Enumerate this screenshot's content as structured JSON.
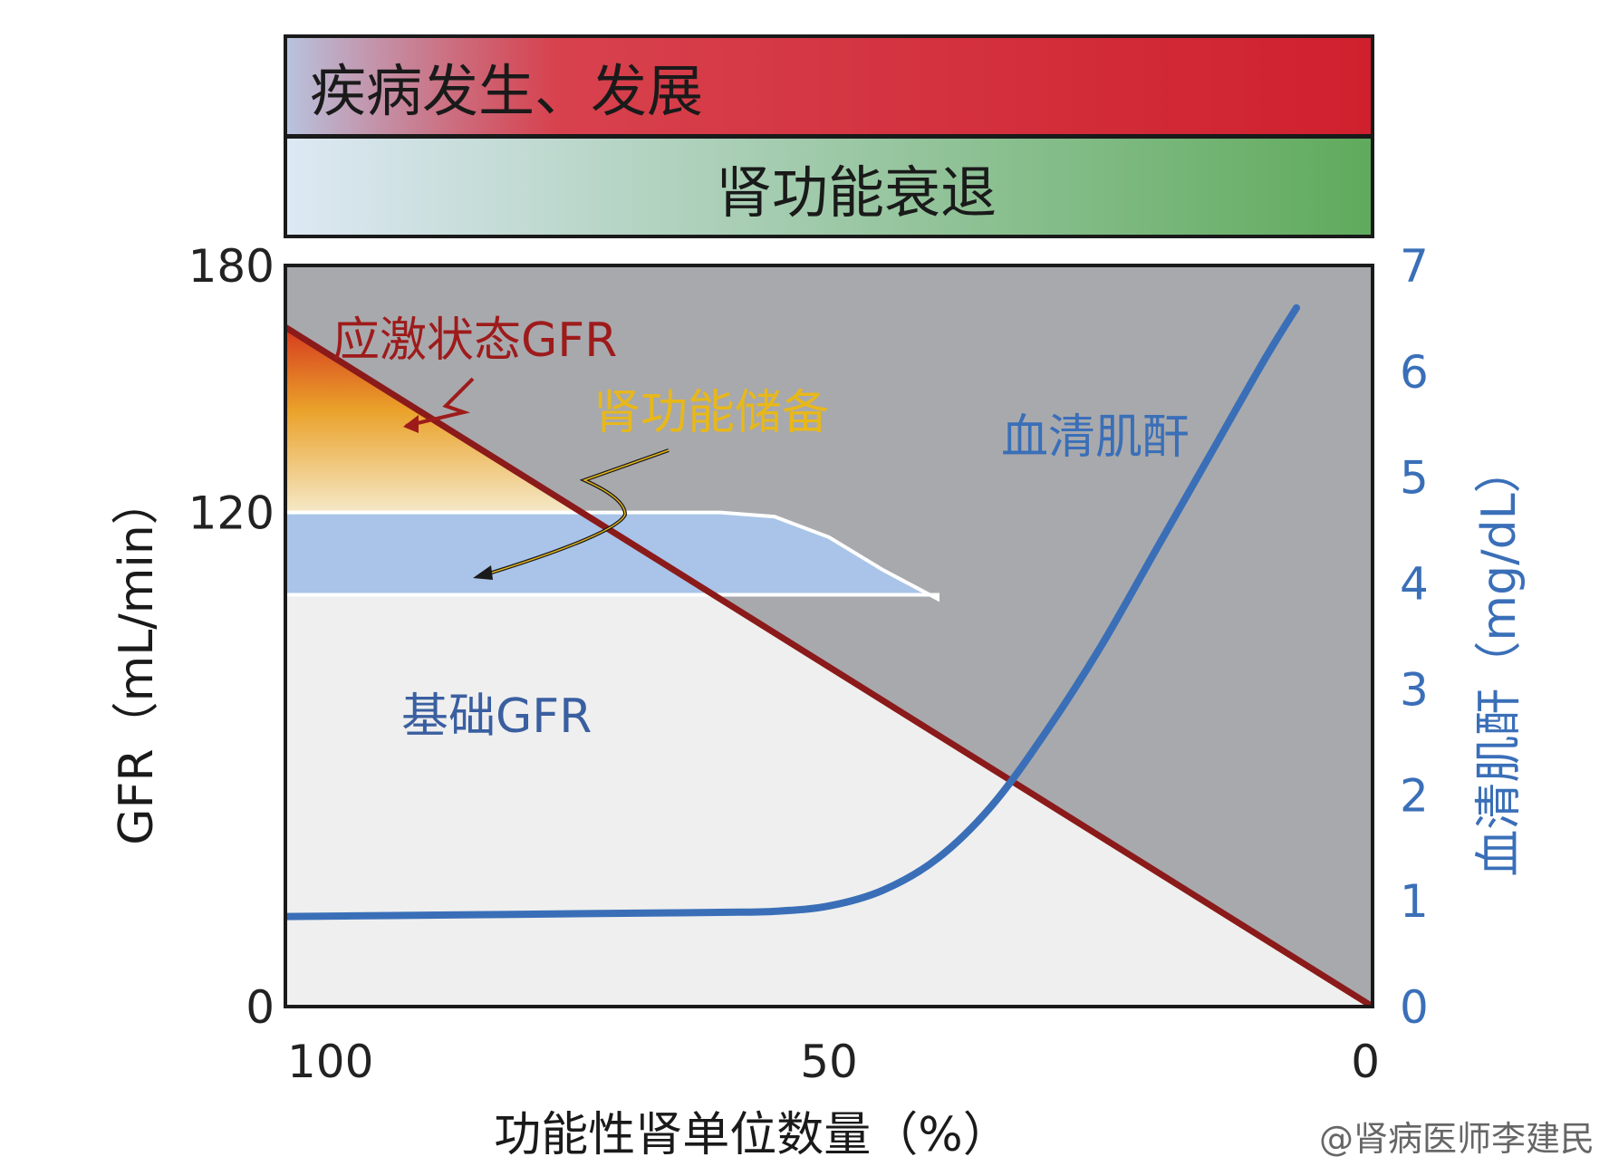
{
  "bands": {
    "top_label": "疾病发生、发展",
    "bottom_label": "肾功能衰退"
  },
  "annotations": {
    "stress_gfr": "应激状态GFR",
    "renal_reserve": "肾功能储备",
    "baseline_gfr": "基础GFR",
    "serum_creatinine": "血清肌酐"
  },
  "watermark": "@肾病医师李建民",
  "chart_data": {
    "type": "line",
    "xlabel": "功能性肾单位数量（%）",
    "ylabel": "GFR（mL/min）",
    "y2label": "血清肌酐（mg/dL）",
    "xlim": [
      100,
      0
    ],
    "ylim": [
      0,
      180
    ],
    "y2lim": [
      0,
      7
    ],
    "xticks": [
      "100",
      "50",
      "0"
    ],
    "yticks": [
      "0",
      "120",
      "180"
    ],
    "y2ticks": [
      "0",
      "1",
      "2",
      "3",
      "4",
      "5",
      "6",
      "7"
    ],
    "grid": false,
    "series": [
      {
        "name": "应激状态GFR",
        "axis": "left",
        "color": "#8b1a1a",
        "x": [
          100,
          0
        ],
        "y": [
          165,
          0
        ]
      },
      {
        "name": "基础GFR",
        "axis": "left",
        "color": "#a9c4e8",
        "x": [
          100,
          90,
          80,
          70,
          60,
          55,
          50,
          45,
          40
        ],
        "y": [
          120,
          120,
          120,
          120,
          120,
          119,
          114,
          106,
          99
        ]
      },
      {
        "name": "血清肌酐",
        "axis": "right",
        "color": "#3a6fb8",
        "x": [
          100,
          90,
          80,
          70,
          60,
          55,
          50,
          45,
          40,
          35,
          30,
          25,
          20,
          15,
          10,
          7
        ],
        "y": [
          0.85,
          0.86,
          0.87,
          0.88,
          0.89,
          0.9,
          0.95,
          1.1,
          1.4,
          1.9,
          2.6,
          3.4,
          4.3,
          5.2,
          6.1,
          6.6
        ]
      }
    ],
    "colors": {
      "plot_bg_upper": "#a8a9ad",
      "plot_bg_lower": "#efefef",
      "reserve_top": "#d63a1f",
      "reserve_bottom": "#f5e9c8",
      "left_axis": "#222222",
      "right_axis": "#3a6fb8",
      "band_top_left": "#b8c4e0",
      "band_top_right": "#d0202e",
      "band_bottom_left": "#dde8f4",
      "band_bottom_right": "#5faa5c",
      "stress_label": "#9e1b1b",
      "reserve_label": "#e8b81a"
    }
  }
}
